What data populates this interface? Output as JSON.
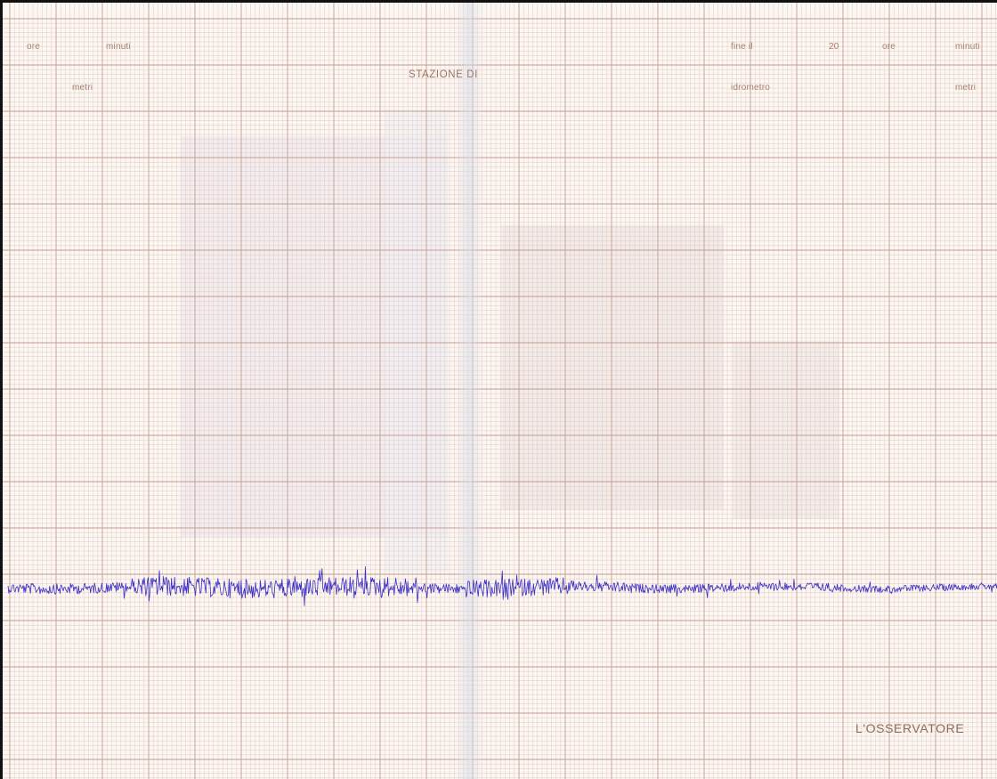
{
  "header": {
    "left": {
      "ore_label": "ore",
      "minuti_label": "minuti",
      "metri_label": "metri"
    },
    "center": {
      "station_label": "STAZIONE DI"
    },
    "right": {
      "fine_label": "fine il",
      "year_label": "20",
      "ore_label": "ore",
      "minuti_label": "minuti",
      "idrometro_label": "idrometro",
      "metri_label": "metri"
    }
  },
  "footer": {
    "observer_label": "L'OSSERVATORE"
  },
  "colors": {
    "paper": "#fbf7f3",
    "grid_fine": "#e3c3ba",
    "grid_major": "#c69a8f",
    "ink": "#3b2ec4",
    "frame": "#111111"
  }
}
